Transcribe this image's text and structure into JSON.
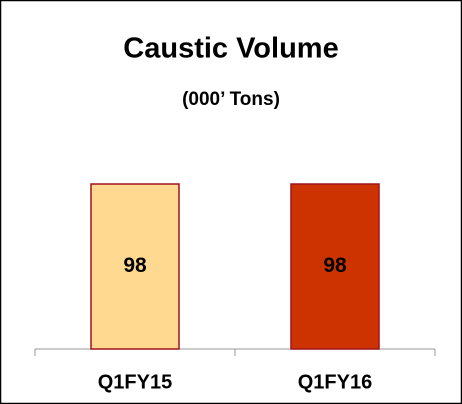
{
  "chart_data": {
    "type": "bar",
    "title": "Caustic Volume",
    "subtitle": "(000’ Tons)",
    "categories": [
      "Q1FY15",
      "Q1FY16"
    ],
    "values": [
      98,
      98
    ],
    "colors": [
      "#ffd98f",
      "#cc3300"
    ],
    "edge_color": "#a0141a",
    "label_colors": [
      "#000000",
      "#ffffff"
    ]
  }
}
